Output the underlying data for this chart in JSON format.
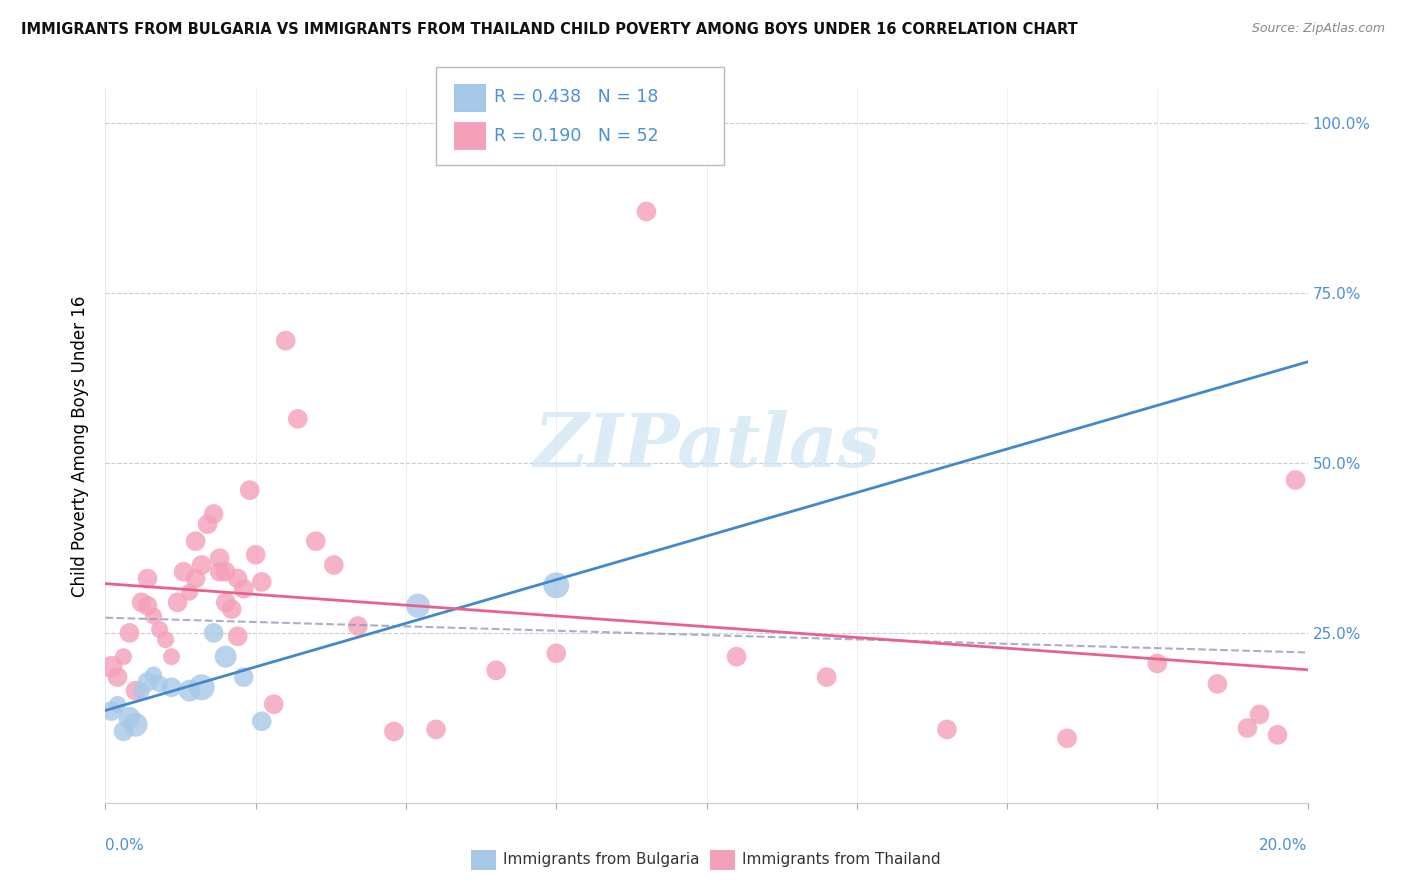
{
  "title": "IMMIGRANTS FROM BULGARIA VS IMMIGRANTS FROM THAILAND CHILD POVERTY AMONG BOYS UNDER 16 CORRELATION CHART",
  "source": "Source: ZipAtlas.com",
  "ylabel": "Child Poverty Among Boys Under 16",
  "ytick_labels": [
    "100.0%",
    "75.0%",
    "50.0%",
    "25.0%"
  ],
  "ytick_vals": [
    1.0,
    0.75,
    0.5,
    0.25
  ],
  "xlim": [
    0.0,
    0.2
  ],
  "ylim": [
    0.0,
    1.05
  ],
  "bulgaria_R": "0.438",
  "bulgaria_N": "18",
  "thailand_R": "0.190",
  "thailand_N": "52",
  "bulgaria_color": "#a8c8e8",
  "thailand_color": "#f4a0b8",
  "bulgaria_line_color": "#4488cc",
  "thailand_line_color": "#e86090",
  "dash_line_color": "#9898c0",
  "watermark_text": "ZIPatlas",
  "watermark_color": "#cce4f5",
  "bg_color": "#ffffff",
  "grid_color": "#cccccc",
  "title_color": "#111111",
  "right_tick_color": "#4a90d9",
  "bottom_label_color": "#4a90d9",
  "legend_text_color_blue": "#4a90d9",
  "legend_text_color_pink": "#e86090",
  "bulgaria_x": [
    0.001,
    0.002,
    0.003,
    0.004,
    0.005,
    0.006,
    0.007,
    0.008,
    0.009,
    0.011,
    0.014,
    0.016,
    0.018,
    0.02,
    0.023,
    0.026,
    0.052,
    0.075
  ],
  "bulgaria_y": [
    0.135,
    0.145,
    0.105,
    0.125,
    0.115,
    0.165,
    0.178,
    0.188,
    0.175,
    0.17,
    0.165,
    0.17,
    0.25,
    0.215,
    0.185,
    0.12,
    0.29,
    0.32
  ],
  "bulgaria_size": [
    200,
    150,
    200,
    250,
    300,
    150,
    200,
    150,
    150,
    200,
    250,
    350,
    200,
    250,
    200,
    200,
    300,
    350
  ],
  "thailand_x": [
    0.001,
    0.002,
    0.003,
    0.004,
    0.005,
    0.006,
    0.007,
    0.007,
    0.008,
    0.009,
    0.01,
    0.011,
    0.012,
    0.013,
    0.014,
    0.015,
    0.015,
    0.016,
    0.017,
    0.018,
    0.019,
    0.019,
    0.02,
    0.02,
    0.021,
    0.022,
    0.022,
    0.023,
    0.024,
    0.025,
    0.026,
    0.028,
    0.03,
    0.032,
    0.035,
    0.038,
    0.042,
    0.048,
    0.055,
    0.065,
    0.075,
    0.09,
    0.105,
    0.12,
    0.14,
    0.16,
    0.175,
    0.185,
    0.19,
    0.192,
    0.195,
    0.198
  ],
  "thailand_y": [
    0.2,
    0.185,
    0.215,
    0.25,
    0.165,
    0.295,
    0.33,
    0.29,
    0.275,
    0.255,
    0.24,
    0.215,
    0.295,
    0.34,
    0.31,
    0.385,
    0.33,
    0.35,
    0.41,
    0.425,
    0.36,
    0.34,
    0.295,
    0.34,
    0.285,
    0.33,
    0.245,
    0.315,
    0.46,
    0.365,
    0.325,
    0.145,
    0.68,
    0.565,
    0.385,
    0.35,
    0.26,
    0.105,
    0.108,
    0.195,
    0.22,
    0.87,
    0.215,
    0.185,
    0.108,
    0.095,
    0.205,
    0.175,
    0.11,
    0.13,
    0.1,
    0.475
  ],
  "thailand_size": [
    250,
    200,
    150,
    200,
    200,
    200,
    200,
    200,
    150,
    150,
    150,
    150,
    200,
    200,
    150,
    200,
    200,
    200,
    200,
    200,
    200,
    200,
    200,
    200,
    200,
    200,
    200,
    200,
    200,
    200,
    200,
    200,
    200,
    200,
    200,
    200,
    200,
    200,
    200,
    200,
    200,
    200,
    200,
    200,
    200,
    200,
    200,
    200,
    200,
    200,
    200,
    200
  ]
}
